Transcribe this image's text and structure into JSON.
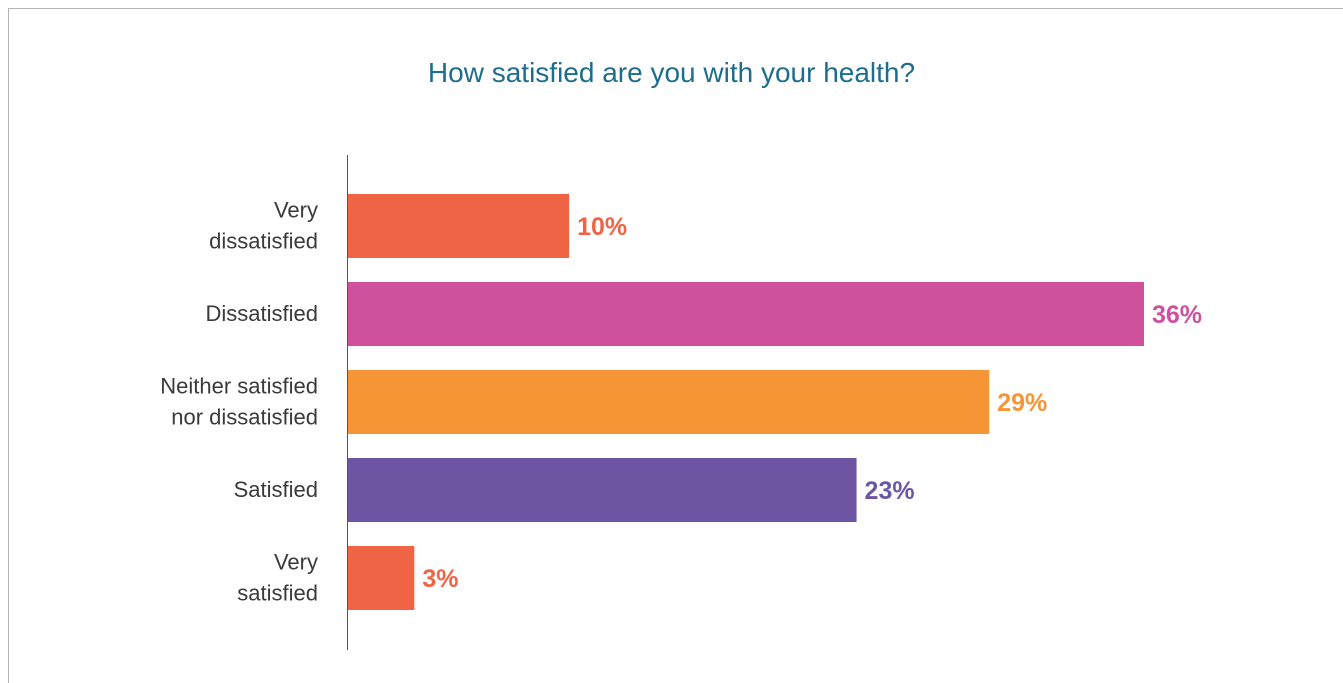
{
  "chart_data": {
    "type": "bar",
    "orientation": "horizontal",
    "title": "How satisfied are you with your health?",
    "categories": [
      [
        "Very",
        "dissatisfied"
      ],
      [
        "Dissatisfied"
      ],
      [
        "Neither satisfied",
        "nor dissatisfied"
      ],
      [
        "Satisfied"
      ],
      [
        "Very",
        "satisfied"
      ]
    ],
    "values": [
      10,
      36,
      29,
      23,
      3
    ],
    "value_labels": [
      "10%",
      "36%",
      "29%",
      "23%",
      "3%"
    ],
    "colors": [
      "#ef6445",
      "#cf519d",
      "#f59536",
      "#6d55a3",
      "#ef6445"
    ],
    "xlim": [
      0,
      36
    ],
    "grid": false,
    "legend": "none"
  }
}
